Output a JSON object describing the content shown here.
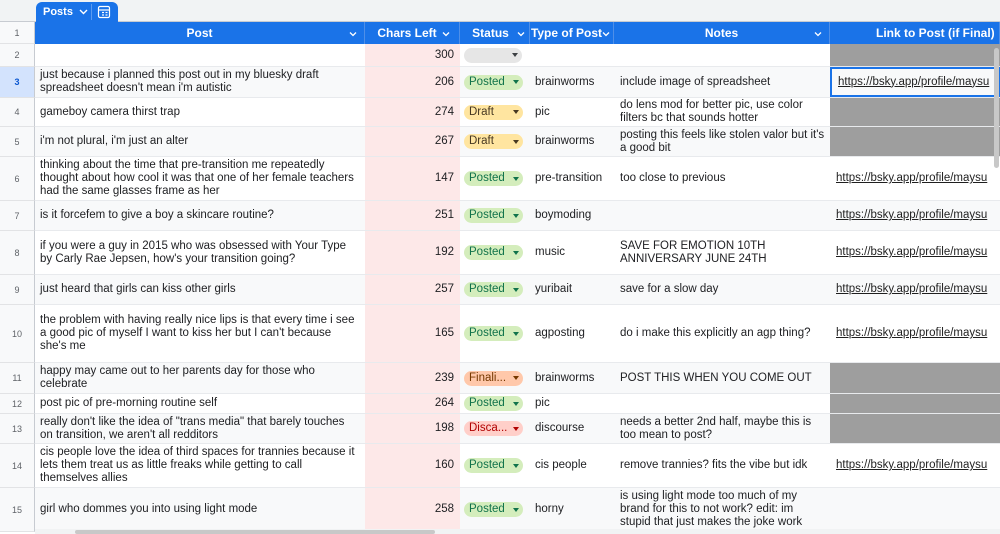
{
  "sheet_tab": {
    "label": "Posts",
    "icon": "chevron-down-icon",
    "calc_icon": "calculator-icon"
  },
  "columns": {
    "post": "Post",
    "chars": "Chars Left",
    "status": "Status",
    "type": "Type of Post",
    "notes": "Notes",
    "link": "Link to Post (if Final)"
  },
  "status_colors": {
    "Posted": {
      "bg": "#d4edbc",
      "fg": "#11734b"
    },
    "Draft": {
      "bg": "#ffe5a0",
      "fg": "#473821"
    },
    "Finali...": {
      "bg": "#ffc8aa",
      "fg": "#753800"
    },
    "Disca...": {
      "bg": "#ffcfc9",
      "fg": "#b10202"
    },
    "": {
      "bg": "#e6e6e6",
      "fg": "#3c4043"
    }
  },
  "rows": [
    {
      "num": "2",
      "post": "",
      "chars": "300",
      "status": "",
      "type": "",
      "notes": "",
      "link": "",
      "link_grey": true
    },
    {
      "num": "3",
      "post": "just because i planned this post out in my bluesky draft spreadsheet doesn't mean i'm autistic",
      "chars": "206",
      "status": "Posted",
      "type": "brainworms",
      "notes": "include image of spreadsheet",
      "link": "https://bsky.app/profile/maysu",
      "link_grey": false,
      "selected": true
    },
    {
      "num": "4",
      "post": "gameboy camera thirst trap",
      "chars": "274",
      "status": "Draft",
      "type": "pic",
      "notes": "do lens mod for better pic, use color filters bc that sounds hotter",
      "link": "",
      "link_grey": true
    },
    {
      "num": "5",
      "post": "i'm not plural, i'm just an alter",
      "chars": "267",
      "status": "Draft",
      "type": "brainworms",
      "notes": "posting this feels like stolen valor but it's a good bit",
      "link": "",
      "link_grey": true
    },
    {
      "num": "6",
      "post": "thinking about the time that pre-transition me repeatedly thought about how cool it was that one of her female teachers had the same glasses frame as her",
      "chars": "147",
      "status": "Posted",
      "type": "pre-transition",
      "notes": "too close to previous",
      "link": "https://bsky.app/profile/maysu",
      "link_grey": false
    },
    {
      "num": "7",
      "post": "is it forcefem to give a boy a skincare routine?",
      "chars": "251",
      "status": "Posted",
      "type": "boymoding",
      "notes": "",
      "link": "https://bsky.app/profile/maysu",
      "link_grey": false
    },
    {
      "num": "8",
      "post": "if you were a guy in 2015 who was obsessed with Your Type by Carly Rae Jepsen, how's your transition going?",
      "chars": "192",
      "status": "Posted",
      "type": "music",
      "notes": "SAVE FOR EMOTION 10TH ANNIVERSARY JUNE 24TH",
      "link": "https://bsky.app/profile/maysu",
      "link_grey": false
    },
    {
      "num": "9",
      "post": "just heard that girls can kiss other girls",
      "chars": "257",
      "status": "Posted",
      "type": "yuribait",
      "notes": "save for a slow day",
      "link": "https://bsky.app/profile/maysu",
      "link_grey": false
    },
    {
      "num": "10",
      "post": "the problem with having really nice lips is that every time i see a good pic of myself I want to kiss her but I can't because she's me",
      "chars": "165",
      "status": "Posted",
      "type": "agposting",
      "notes": "do i make this explicitly an agp thing?",
      "link": "https://bsky.app/profile/maysu",
      "link_grey": false
    },
    {
      "num": "11",
      "post": "happy may came out to her parents day for those who celebrate",
      "chars": "239",
      "status": "Finali...",
      "type": "brainworms",
      "notes": "POST THIS WHEN YOU COME OUT",
      "link": "",
      "link_grey": true
    },
    {
      "num": "12",
      "post": "post pic of pre-morning routine self",
      "chars": "264",
      "status": "Posted",
      "type": "pic",
      "notes": "",
      "link": "",
      "link_grey": true
    },
    {
      "num": "13",
      "post": "really don't like the idea of \"trans media\" that barely touches on transition, we aren't all redditors",
      "chars": "198",
      "status": "Disca...",
      "type": "discourse",
      "notes": "needs a better 2nd half, maybe this is too mean to post?",
      "link": "",
      "link_grey": true
    },
    {
      "num": "14",
      "post": "cis people love the idea of third spaces for trannies because it lets them treat us as little freaks while getting to call themselves allies",
      "chars": "160",
      "status": "Posted",
      "type": "cis people",
      "notes": "remove trannies? fits the vibe but idk",
      "link": "https://bsky.app/profile/maysu",
      "link_grey": false
    },
    {
      "num": "15",
      "post": "girl who dommes you into using light mode",
      "chars": "258",
      "status": "Posted",
      "type": "horny",
      "notes": "is using light mode too much of my brand for this to not work? edit: im stupid that just makes the joke work",
      "link": "",
      "link_grey": false
    }
  ]
}
